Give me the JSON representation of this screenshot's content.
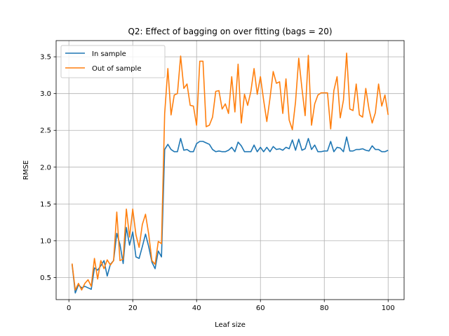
{
  "chart_data": {
    "type": "line",
    "title": "Q2: Effect of bagging on over fitting (bags = 20)",
    "xlabel": "Leaf size",
    "ylabel": "RMSE",
    "xlim": [
      -4,
      105
    ],
    "ylim": [
      0.2,
      3.72
    ],
    "xticks": [
      0,
      20,
      40,
      60,
      80,
      100
    ],
    "yticks": [
      0.5,
      1.0,
      1.5,
      2.0,
      2.5,
      3.0,
      3.5
    ],
    "xtick_labels": [
      "0",
      "20",
      "40",
      "60",
      "80",
      "100"
    ],
    "ytick_labels": [
      "0.5",
      "1.0",
      "1.5",
      "2.0",
      "2.5",
      "3.0",
      "3.5"
    ],
    "grid": true,
    "legend_position": "top-left",
    "x": [
      1,
      2,
      3,
      4,
      5,
      6,
      7,
      8,
      9,
      10,
      11,
      12,
      13,
      14,
      15,
      16,
      17,
      18,
      19,
      20,
      21,
      22,
      23,
      24,
      25,
      26,
      27,
      28,
      29,
      30,
      31,
      32,
      33,
      34,
      35,
      36,
      37,
      38,
      39,
      40,
      41,
      42,
      43,
      44,
      45,
      46,
      47,
      48,
      49,
      50,
      51,
      52,
      53,
      54,
      55,
      56,
      57,
      58,
      59,
      60,
      61,
      62,
      63,
      64,
      65,
      66,
      67,
      68,
      69,
      70,
      71,
      72,
      73,
      74,
      75,
      76,
      77,
      78,
      79,
      80,
      81,
      82,
      83,
      84,
      85,
      86,
      87,
      88,
      89,
      90,
      91,
      92,
      93,
      94,
      95,
      96,
      97,
      98,
      99,
      100
    ],
    "series": [
      {
        "name": "In sample",
        "color": "#1f77b4",
        "values": [
          0.68,
          0.29,
          0.4,
          0.36,
          0.38,
          0.36,
          0.34,
          0.63,
          0.6,
          0.66,
          0.73,
          0.52,
          0.68,
          0.73,
          1.1,
          0.95,
          0.69,
          1.18,
          0.94,
          1.12,
          0.78,
          0.76,
          0.92,
          1.09,
          0.92,
          0.71,
          0.62,
          0.86,
          0.78,
          2.24,
          2.31,
          2.24,
          2.21,
          2.21,
          2.39,
          2.23,
          2.24,
          2.21,
          2.21,
          2.32,
          2.35,
          2.35,
          2.33,
          2.31,
          2.24,
          2.21,
          2.22,
          2.21,
          2.21,
          2.23,
          2.27,
          2.21,
          2.34,
          2.29,
          2.21,
          2.21,
          2.21,
          2.3,
          2.21,
          2.27,
          2.21,
          2.27,
          2.21,
          2.28,
          2.24,
          2.25,
          2.23,
          2.27,
          2.25,
          2.37,
          2.23,
          2.38,
          2.23,
          2.25,
          2.39,
          2.24,
          2.3,
          2.21,
          2.21,
          2.22,
          2.22,
          2.35,
          2.21,
          2.27,
          2.26,
          2.21,
          2.41,
          2.22,
          2.22,
          2.24,
          2.24,
          2.25,
          2.23,
          2.22,
          2.29,
          2.24,
          2.24,
          2.21,
          2.21,
          2.23
        ]
      },
      {
        "name": "Out of sample",
        "color": "#ff7f0e",
        "values": [
          0.69,
          0.33,
          0.42,
          0.33,
          0.42,
          0.47,
          0.38,
          0.76,
          0.48,
          0.73,
          0.62,
          0.74,
          0.67,
          0.73,
          1.39,
          0.73,
          0.75,
          1.43,
          1.05,
          1.43,
          1.08,
          0.91,
          1.22,
          1.36,
          1.09,
          0.73,
          0.68,
          0.99,
          0.96,
          2.73,
          3.34,
          2.71,
          2.98,
          3.0,
          3.51,
          3.07,
          3.13,
          2.84,
          2.83,
          2.57,
          3.44,
          3.44,
          2.55,
          2.57,
          2.68,
          3.03,
          3.04,
          2.79,
          2.86,
          2.73,
          3.23,
          2.75,
          3.4,
          2.6,
          2.99,
          2.84,
          3.03,
          3.34,
          2.99,
          3.23,
          2.91,
          2.62,
          2.94,
          3.3,
          3.14,
          3.16,
          2.73,
          3.2,
          2.64,
          2.51,
          2.89,
          3.48,
          3.07,
          2.7,
          3.52,
          2.57,
          2.86,
          2.98,
          3.01,
          3.01,
          3.01,
          2.52,
          3.04,
          3.23,
          2.67,
          2.91,
          3.55,
          2.79,
          2.77,
          3.13,
          2.71,
          2.68,
          3.07,
          2.79,
          2.6,
          2.74,
          3.13,
          2.83,
          2.98,
          2.71
        ]
      }
    ]
  }
}
